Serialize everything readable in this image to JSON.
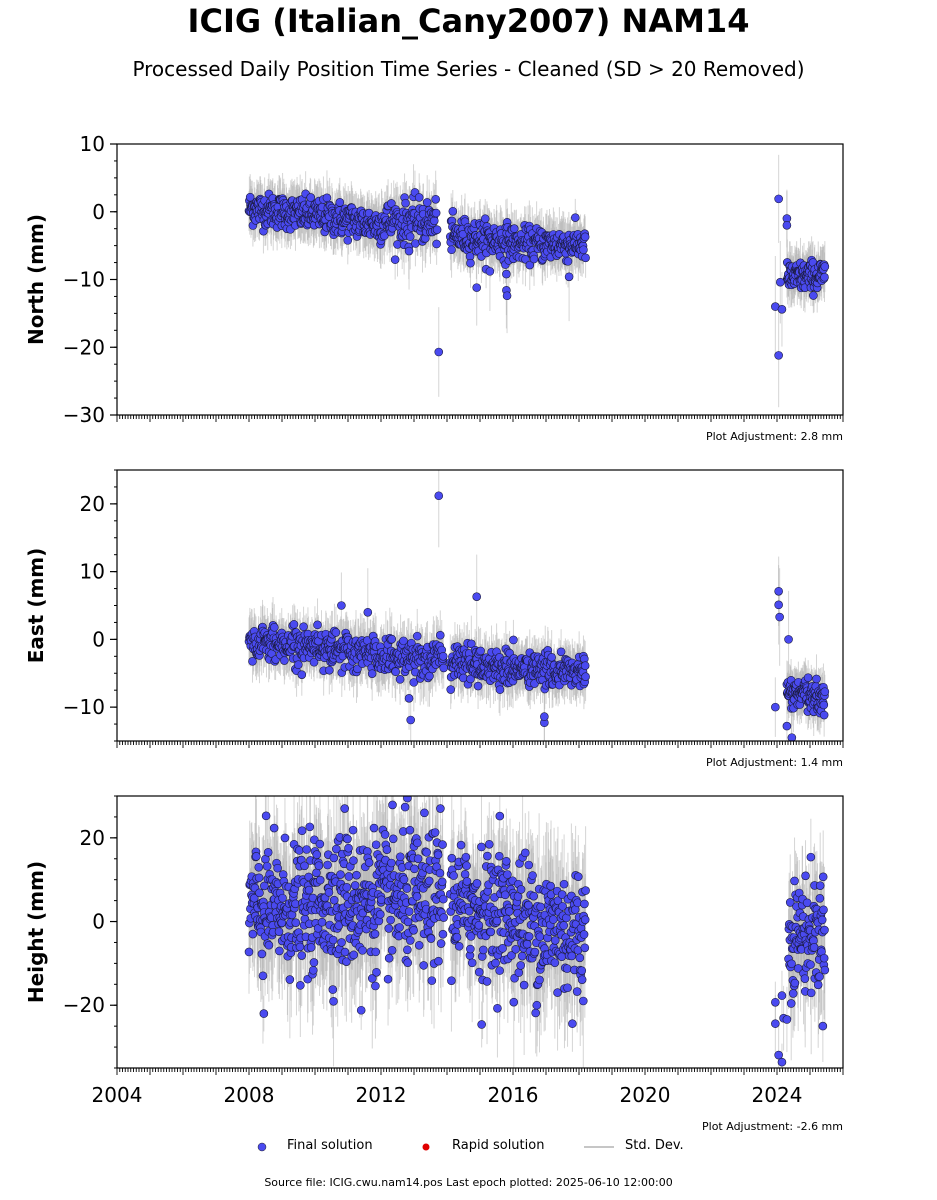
{
  "title": "ICIG (Italian_Cany2007) NAM14",
  "subtitle": "Processed Daily Position Time Series - Cleaned (SD > 20 Removed)",
  "legend": {
    "final": "Final solution",
    "rapid": "Rapid solution",
    "std": "Std. Dev."
  },
  "footer": "Source file: ICIG.cwu.nam14.pos  Last epoch plotted: 2025-06-10 12:00:00",
  "colors": {
    "final": "#4a4af0",
    "rapid": "#e00000",
    "std": "#b3b3b3"
  },
  "chart_data": [
    {
      "type": "scatter",
      "ylabel": "North (mm)",
      "xlim": [
        2004,
        2026
      ],
      "ylim": [
        -30,
        10
      ],
      "yticks": [
        10,
        0,
        -10,
        -20,
        -30
      ],
      "ytick_labels": [
        "10",
        "0",
        "−10",
        "−20",
        "−30"
      ],
      "adjustment": "Plot Adjustment: 2.8 mm",
      "series": [
        {
          "marker": "circle",
          "segments": [
            {
              "start": 2008.0,
              "end": 2010.0,
              "mean": 0.5,
              "trend": -1.0,
              "spread": 1.2,
              "n": 170
            },
            {
              "start": 2010.0,
              "end": 2012.0,
              "mean": -0.5,
              "trend": -1.5,
              "spread": 1.3,
              "n": 150
            },
            {
              "start": 2012.0,
              "end": 2013.7,
              "mean": -1.5,
              "trend": 0.0,
              "spread": 1.6,
              "n": 120
            },
            {
              "start": 2014.1,
              "end": 2016.0,
              "mean": -3.5,
              "trend": -1.0,
              "spread": 1.3,
              "n": 150
            },
            {
              "start": 2016.0,
              "end": 2018.2,
              "mean": -4.8,
              "trend": 0.0,
              "spread": 1.2,
              "n": 170
            },
            {
              "start": 2024.3,
              "end": 2025.45,
              "mean": -9.8,
              "trend": 0.5,
              "spread": 1.1,
              "n": 110
            }
          ],
          "outliers": [
            [
              2013.75,
              -20.7
            ],
            [
              2014.9,
              -11.2
            ],
            [
              2015.8,
              -11.6
            ],
            [
              2015.82,
              -12.4
            ],
            [
              2024.05,
              1.9
            ],
            [
              2024.3,
              -1.0
            ],
            [
              2024.05,
              -21.2
            ],
            [
              2023.95,
              -14.0
            ],
            [
              2024.15,
              -14.4
            ],
            [
              2017.7,
              -9.6
            ],
            [
              2015.3,
              -8.8
            ],
            [
              2015.8,
              -9.2
            ],
            [
              2012.85,
              -5.8
            ],
            [
              2024.1,
              -10.4
            ],
            [
              2024.3,
              -2.0
            ]
          ]
        }
      ]
    },
    {
      "type": "scatter",
      "ylabel": "East (mm)",
      "xlim": [
        2004,
        2026
      ],
      "ylim": [
        -15,
        25
      ],
      "yticks": [
        20,
        10,
        0,
        -10
      ],
      "ytick_labels": [
        "20",
        "10",
        "0",
        "−10"
      ],
      "adjustment": "Plot Adjustment: 1.4 mm",
      "series": [
        {
          "marker": "circle",
          "segments": [
            {
              "start": 2008.0,
              "end": 2010.5,
              "mean": -0.5,
              "trend": -0.5,
              "spread": 1.3,
              "n": 190
            },
            {
              "start": 2010.5,
              "end": 2013.9,
              "mean": -1.8,
              "trend": -1.2,
              "spread": 1.5,
              "n": 230
            },
            {
              "start": 2014.1,
              "end": 2016.0,
              "mean": -3.2,
              "trend": -1.2,
              "spread": 1.3,
              "n": 150
            },
            {
              "start": 2016.0,
              "end": 2018.2,
              "mean": -4.3,
              "trend": -0.6,
              "spread": 1.2,
              "n": 170
            },
            {
              "start": 2024.3,
              "end": 2025.45,
              "mean": -7.8,
              "trend": -1.0,
              "spread": 1.1,
              "n": 110
            }
          ],
          "outliers": [
            [
              2013.75,
              21.2
            ],
            [
              2014.9,
              6.3
            ],
            [
              2012.9,
              -11.9
            ],
            [
              2012.85,
              -8.7
            ],
            [
              2016.95,
              -12.3
            ],
            [
              2016.95,
              -11.4
            ],
            [
              2024.05,
              7.1
            ],
            [
              2024.05,
              5.1
            ],
            [
              2024.08,
              3.3
            ],
            [
              2024.35,
              0.0
            ],
            [
              2024.45,
              -14.5
            ],
            [
              2024.3,
              -12.8
            ],
            [
              2023.95,
              -10.0
            ],
            [
              2010.8,
              5.0
            ],
            [
              2011.6,
              4.0
            ]
          ]
        }
      ]
    },
    {
      "type": "scatter",
      "ylabel": "Height (mm)",
      "xlabel": "",
      "xlim": [
        2004,
        2026
      ],
      "ylim": [
        -35,
        30
      ],
      "yticks": [
        20,
        0,
        -20
      ],
      "ytick_labels": [
        "20",
        "0",
        "−20"
      ],
      "xticks": [
        2004,
        2008,
        2012,
        2016,
        2020,
        2024
      ],
      "xtick_labels": [
        "2004",
        "2008",
        "2012",
        "2016",
        "2020",
        "2024"
      ],
      "adjustment": "Plot Adjustment: -2.6 mm",
      "series": [
        {
          "marker": "circle",
          "segments": [
            {
              "start": 2008.0,
              "end": 2010.0,
              "mean": 3.0,
              "trend": 0.0,
              "spread": 7.5,
              "n": 190
            },
            {
              "start": 2010.0,
              "end": 2012.0,
              "mean": 5.0,
              "trend": 0.0,
              "spread": 8.0,
              "n": 190
            },
            {
              "start": 2012.0,
              "end": 2013.9,
              "mean": 5.0,
              "trend": 0.0,
              "spread": 8.0,
              "n": 170
            },
            {
              "start": 2014.1,
              "end": 2016.0,
              "mean": 4.0,
              "trend": -2.0,
              "spread": 7.0,
              "n": 170
            },
            {
              "start": 2016.0,
              "end": 2018.2,
              "mean": 0.0,
              "trend": -3.0,
              "spread": 8.0,
              "n": 190
            },
            {
              "start": 2024.35,
              "end": 2025.45,
              "mean": -3.0,
              "trend": 0.0,
              "spread": 6.5,
              "n": 110
            }
          ],
          "outliers": [
            [
              2013.8,
              27.0
            ],
            [
              2012.8,
              29.5
            ],
            [
              2008.45,
              -22.0
            ],
            [
              2011.4,
              -21.2
            ],
            [
              2015.05,
              -24.6
            ],
            [
              2017.8,
              -24.4
            ],
            [
              2023.95,
              -19.3
            ],
            [
              2023.95,
              -24.4
            ],
            [
              2024.05,
              -31.9
            ],
            [
              2024.15,
              -33.6
            ],
            [
              2024.2,
              -23.1
            ],
            [
              2024.3,
              -23.4
            ],
            [
              2024.15,
              -17.7
            ],
            [
              2010.9,
              27.0
            ],
            [
              2015.6,
              25.2
            ]
          ]
        }
      ]
    }
  ]
}
